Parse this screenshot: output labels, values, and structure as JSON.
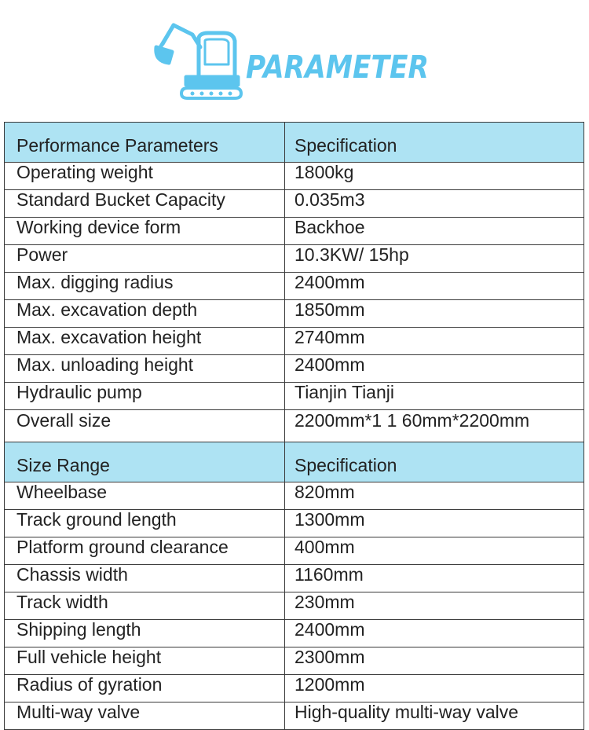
{
  "logo": {
    "text": "PARAMETER",
    "icon": "excavator-icon",
    "color": "#5cc5ee"
  },
  "performance_table": {
    "header": [
      "Performance Parameters",
      "Specification"
    ],
    "rows": [
      [
        "Operating weight",
        "1800kg"
      ],
      [
        "Standard Bucket Capacity",
        "0.035m3"
      ],
      [
        "Working device form",
        "Backhoe"
      ],
      [
        "Power",
        "10.3KW/ 15hp"
      ],
      [
        "Max. digging radius",
        "2400mm"
      ],
      [
        "Max. excavation depth",
        "1850mm"
      ],
      [
        "Max. excavation height",
        "2740mm"
      ],
      [
        "Max. unloading height",
        "2400mm"
      ],
      [
        "Hydraulic pump",
        "Tianjin Tianji"
      ],
      [
        "Overall size",
        "2200mm*1 1 60mm*2200mm"
      ]
    ]
  },
  "size_table": {
    "header": [
      "Size Range",
      "Specification"
    ],
    "rows": [
      [
        "Wheelbase",
        "820mm"
      ],
      [
        "Track ground length",
        "1300mm"
      ],
      [
        "Platform ground clearance",
        "400mm"
      ],
      [
        "Chassis width",
        "1160mm"
      ],
      [
        "Track width",
        "230mm"
      ],
      [
        "Shipping length",
        "2400mm"
      ],
      [
        "Full vehicle height",
        "2300mm"
      ],
      [
        "Radius of gyration",
        "1200mm"
      ],
      [
        "Multi-way valve",
        "High-quality multi-way valve"
      ]
    ]
  },
  "colors": {
    "header_bg": "#aee3f3",
    "border": "#3a3a3a",
    "accent": "#5cc5ee"
  }
}
